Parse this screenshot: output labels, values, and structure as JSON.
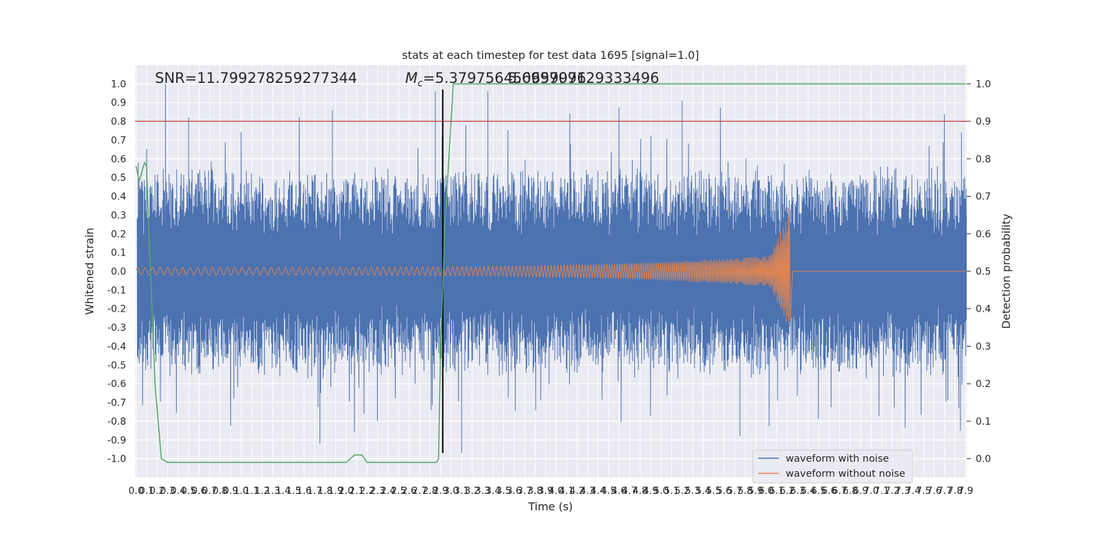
{
  "chart_data": {
    "type": "line",
    "title": "stats at each timestep for test data 1695 [signal=1.0]",
    "xlabel": "Time (s)",
    "ylabel": "Whitened strain",
    "y2label": "Detection probability",
    "xlim": [
      0.0,
      7.9
    ],
    "ylim": [
      -1.0,
      1.0
    ],
    "y2lim": [
      0.0,
      1.0
    ],
    "grid": true,
    "legend_position": "lower-right",
    "annotations": {
      "snr_prefix": "SNR=",
      "snr_value": "11.799278259277344",
      "mc_symbol": "M",
      "mc_subscript": "c",
      "mc_equals": "=",
      "mc_value": "5.379756450659976",
      "second_value": "5.699709129333496"
    },
    "threshold_line": {
      "axis": "y",
      "value": 0.8,
      "color": "#c44e52"
    },
    "event_line": {
      "axis": "x",
      "value": 2.92,
      "color": "#000000"
    },
    "series": [
      {
        "name": "waveform with noise",
        "color": "#4c72b0",
        "description_envelope": {
          "noise_abs_typical": 0.45,
          "peaks": [
            [
              0.28,
              1.0
            ],
            [
              0.5,
              0.82
            ],
            [
              1.87,
              0.86
            ],
            [
              2.85,
              0.96
            ],
            [
              3.35,
              0.96
            ],
            [
              4.13,
              0.84
            ],
            [
              5.2,
              0.91
            ],
            [
              0.02,
              0.58
            ],
            [
              7.86,
              0.74
            ]
          ],
          "troughs": [
            [
              1.75,
              -0.92
            ],
            [
              3.1,
              -0.97
            ],
            [
              5.75,
              -0.88
            ],
            [
              7.85,
              -0.85
            ]
          ]
        }
      },
      {
        "name": "waveform without noise",
        "color": "#dd8452",
        "chirp": {
          "start": 0.0,
          "merger": 6.22,
          "amp_start": 0.02,
          "amp_peak": 0.34,
          "amp_min_trough": -0.27,
          "f_start_hz": 30,
          "f_end_hz": 60
        }
      },
      {
        "name": "",
        "axis": "right",
        "color": "#55a868",
        "x": [
          0.0,
          0.03,
          0.06,
          0.08,
          0.1,
          0.12,
          0.18,
          0.24,
          0.3,
          1.0,
          1.6,
          1.8,
          2.0,
          2.08,
          2.15,
          2.2,
          2.3,
          2.5,
          2.8,
          2.86,
          2.88,
          2.9,
          2.94,
          3.02,
          7.9
        ],
        "y": [
          0.78,
          0.74,
          0.77,
          0.79,
          0.78,
          0.62,
          0.2,
          0.0,
          -0.01,
          -0.01,
          -0.01,
          -0.01,
          -0.01,
          0.01,
          0.01,
          -0.01,
          -0.01,
          -0.01,
          -0.01,
          -0.01,
          0.0,
          0.3,
          0.62,
          1.0,
          1.0
        ]
      }
    ],
    "x_ticks": [
      "0.0",
      "0.1",
      "0.2",
      "0.3",
      "0.4",
      "0.5",
      "0.6",
      "0.7",
      "0.8",
      "0.9",
      "1.0",
      "1.1",
      "1.2",
      "1.3",
      "1.4",
      "1.5",
      "1.6",
      "1.7",
      "1.8",
      "1.9",
      "2.0",
      "2.1",
      "2.2",
      "2.3",
      "2.4",
      "2.5",
      "2.6",
      "2.7",
      "2.8",
      "2.9",
      "3.0",
      "3.1",
      "3.2",
      "3.3",
      "3.4",
      "3.5",
      "3.6",
      "3.7",
      "3.8",
      "3.9",
      "4.0",
      "4.1",
      "4.2",
      "4.3",
      "4.4",
      "4.5",
      "4.6",
      "4.7",
      "4.8",
      "4.9",
      "5.0",
      "5.1",
      "5.2",
      "5.3",
      "5.4",
      "5.5",
      "5.6",
      "5.7",
      "5.8",
      "5.9",
      "6.0",
      "6.1",
      "6.2",
      "6.3",
      "6.4",
      "6.5",
      "6.6",
      "6.7",
      "6.8",
      "6.9",
      "7.0",
      "7.1",
      "7.2",
      "7.3",
      "7.4",
      "7.5",
      "7.6",
      "7.7",
      "7.8",
      "7.9"
    ],
    "y_ticks": [
      "1.0",
      "0.9",
      "0.8",
      "0.7",
      "0.6",
      "0.5",
      "0.4",
      "0.3",
      "0.2",
      "0.1",
      "0.0",
      "-0.1",
      "-0.2",
      "-0.3",
      "-0.4",
      "-0.5",
      "-0.6",
      "-0.7",
      "-0.8",
      "-0.9",
      "-1.0"
    ],
    "y2_ticks": [
      "1.0",
      "0.9",
      "0.8",
      "0.7",
      "0.6",
      "0.5",
      "0.4",
      "0.3",
      "0.2",
      "0.1",
      "0.0"
    ]
  }
}
